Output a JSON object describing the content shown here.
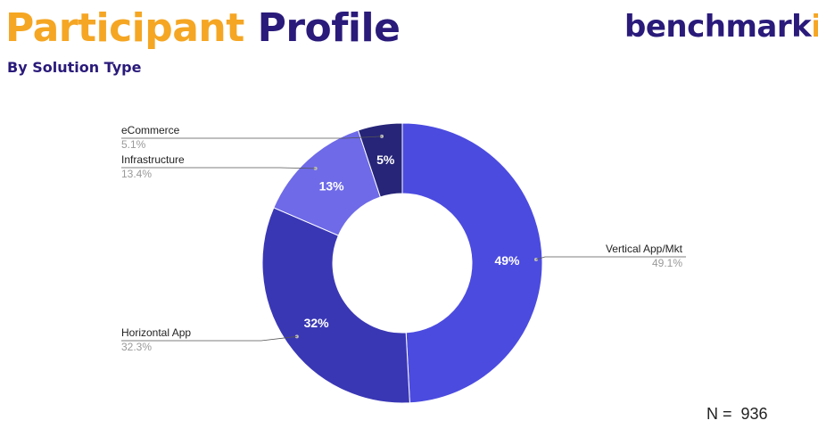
{
  "header": {
    "title_word1": "Participant",
    "title_word2": "Profile",
    "subtitle": "By Solution Type"
  },
  "logo": {
    "text_main": "benchmark",
    "text_accent": "it"
  },
  "footer": {
    "n_label": "N =  936"
  },
  "colors": {
    "title_orange": "#f5a623",
    "title_navy": "#2a1a7a"
  },
  "chart_data": {
    "type": "pie",
    "donut": true,
    "title": "",
    "slices": [
      {
        "name": "Vertical App/Mkt",
        "value": 49.1,
        "inner_label": "49%",
        "outer_value": "49.1%",
        "color": "#4b4be0",
        "side": "right"
      },
      {
        "name": "Horizontal App",
        "value": 32.3,
        "inner_label": "32%",
        "outer_value": "32.3%",
        "color": "#3a37b5",
        "side": "left"
      },
      {
        "name": "Infrastructure",
        "value": 13.4,
        "inner_label": "13%",
        "outer_value": "13.4%",
        "color": "#6e6ae8",
        "side": "left"
      },
      {
        "name": "eCommerce",
        "value": 5.1,
        "inner_label": "5%",
        "outer_value": "5.1%",
        "color": "#262578",
        "side": "left"
      }
    ]
  }
}
